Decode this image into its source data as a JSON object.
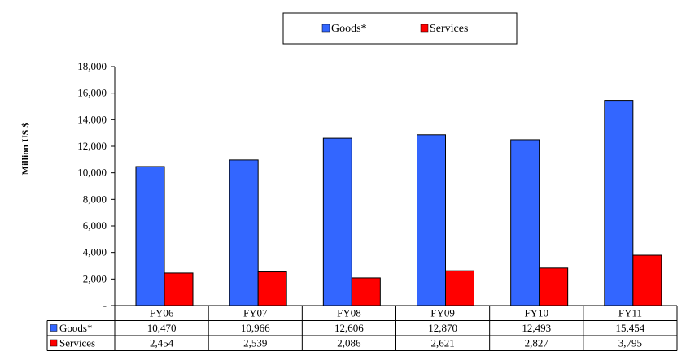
{
  "chart_data": {
    "type": "bar",
    "title": "",
    "xlabel": "",
    "ylabel": "Million US $",
    "categories": [
      "FY06",
      "FY07",
      "FY08",
      "FY09",
      "FY10",
      "FY11"
    ],
    "series": [
      {
        "name": "Goods*",
        "color": "#3366ff",
        "values": [
          10470,
          10966,
          12606,
          12870,
          12493,
          15454
        ],
        "labels": [
          "10,470",
          "10,966",
          "12,606",
          "12,870",
          "12,493",
          "15,454"
        ]
      },
      {
        "name": "Services",
        "color": "#ff0000",
        "values": [
          2454,
          2539,
          2086,
          2621,
          2827,
          3795
        ],
        "labels": [
          "2,454",
          "2,539",
          "2,086",
          "2,621",
          "2,827",
          "3,795"
        ]
      }
    ],
    "ylim": [
      0,
      18000
    ],
    "yticks": [
      0,
      2000,
      4000,
      6000,
      8000,
      10000,
      12000,
      14000,
      16000,
      18000
    ],
    "ytick_labels": [
      "-",
      "2,000",
      "4,000",
      "6,000",
      "8,000",
      "10,000",
      "12,000",
      "14,000",
      "16,000",
      "18,000"
    ],
    "grid": false,
    "legend_position": "top-center",
    "data_table": true
  }
}
